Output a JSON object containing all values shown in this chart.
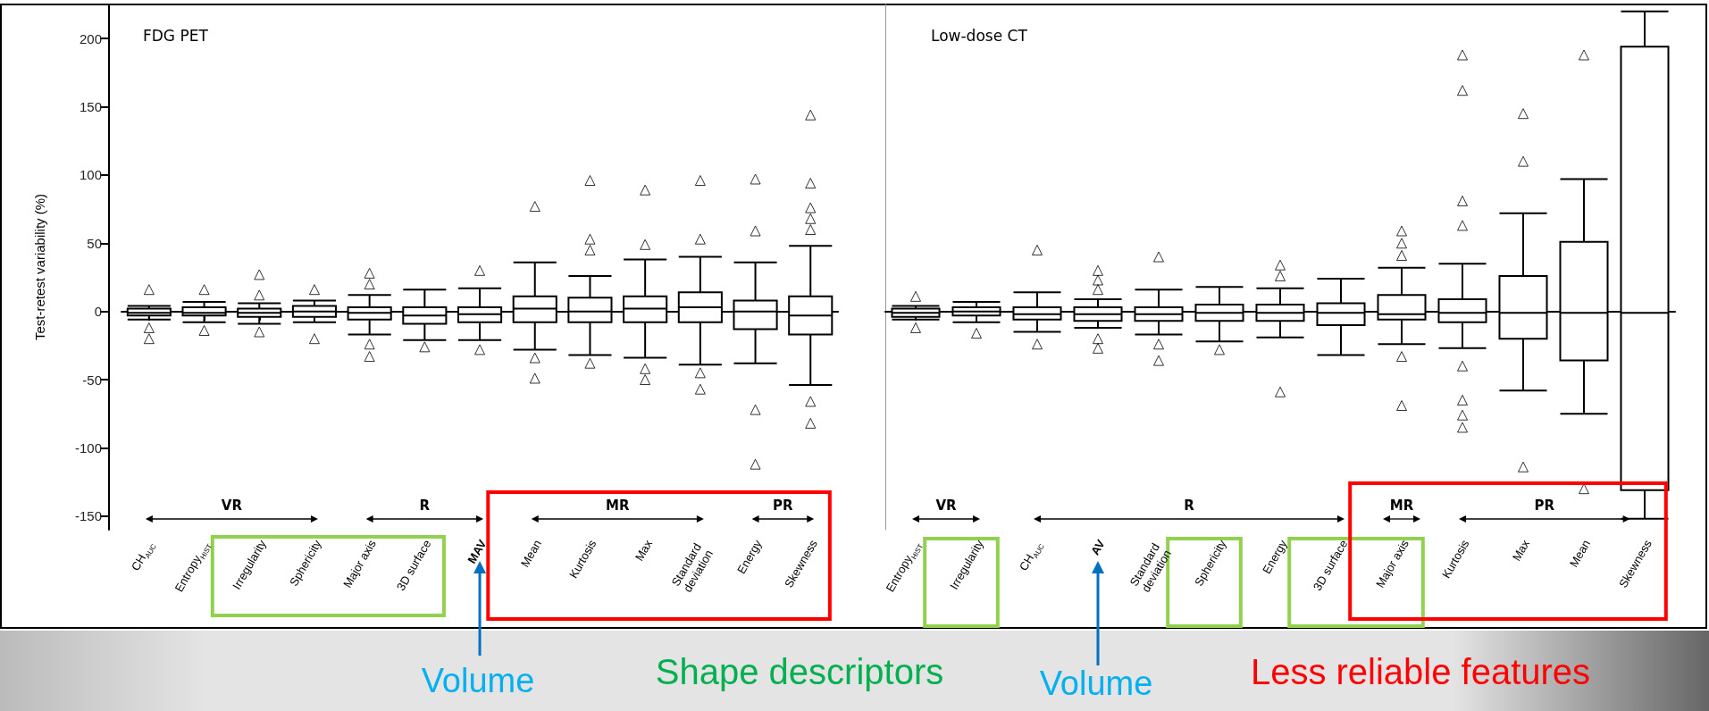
{
  "chart_data": [
    {
      "type": "box",
      "title": "FDG PET",
      "ylabel": "Test-retest variability (%)",
      "color": "#000000",
      "marker": "triangle",
      "categories": [
        "CH$_{AUC}$",
        "Entropy$_{HIST}$",
        "Irregularity",
        "Sphericity",
        "Major axis",
        "3D surface",
        "MAV",
        "Mean",
        "Kurtosis",
        "Max",
        "Standard deviation",
        "Energy",
        "Skewness"
      ],
      "boxes": [
        {
          "low": -6,
          "q1": -3,
          "median": -1,
          "q3": 2,
          "high": 4,
          "outliers": [
            16,
            -12,
            -20
          ]
        },
        {
          "low": -8,
          "q1": -3,
          "median": -1,
          "q3": 3,
          "high": 7,
          "outliers": [
            16,
            -14
          ]
        },
        {
          "low": -9,
          "q1": -4,
          "median": -1,
          "q3": 2,
          "high": 6,
          "outliers": [
            27,
            12,
            -15
          ]
        },
        {
          "low": -8,
          "q1": -4,
          "median": 0,
          "q3": 4,
          "high": 8,
          "outliers": [
            16,
            -20
          ]
        },
        {
          "low": -17,
          "q1": -6,
          "median": -1,
          "q3": 3,
          "high": 12,
          "outliers": [
            28,
            20,
            -24,
            -33
          ]
        },
        {
          "low": -21,
          "q1": -9,
          "median": -3,
          "q3": 3,
          "high": 16,
          "outliers": [
            -26
          ]
        },
        {
          "low": -21,
          "q1": -8,
          "median": -2,
          "q3": 3,
          "high": 17,
          "outliers": [
            30,
            -28
          ]
        },
        {
          "low": -28,
          "q1": -8,
          "median": 2,
          "q3": 11,
          "high": 36,
          "outliers": [
            77,
            -34,
            -49
          ]
        },
        {
          "low": -32,
          "q1": -8,
          "median": 0,
          "q3": 10,
          "high": 26,
          "outliers": [
            96,
            53,
            45,
            -38
          ]
        },
        {
          "low": -34,
          "q1": -8,
          "median": 2,
          "q3": 11,
          "high": 38,
          "outliers": [
            89,
            49,
            -42,
            -50
          ]
        },
        {
          "low": -39,
          "q1": -8,
          "median": 3,
          "q3": 14,
          "high": 40,
          "outliers": [
            96,
            53,
            -45,
            -57
          ]
        },
        {
          "low": -38,
          "q1": -13,
          "median": 0,
          "q3": 8,
          "high": 36,
          "outliers": [
            97,
            59,
            -72,
            -112
          ]
        },
        {
          "low": -54,
          "q1": -17,
          "median": -3,
          "q3": 11,
          "high": 48,
          "outliers": [
            144,
            94,
            76,
            68,
            60,
            -66,
            -82
          ]
        }
      ],
      "ylim": [
        -160,
        225
      ],
      "yticks": [
        -150,
        -100,
        -50,
        0,
        50,
        100,
        150,
        200
      ],
      "annotations": [
        "VR",
        "R",
        "MR",
        "PR",
        "Volume",
        "Shape descriptors"
      ]
    },
    {
      "type": "box",
      "title": "Low-dose CT",
      "color": "#000000",
      "marker": "triangle",
      "tick_labels": "x",
      "categories": [
        "Entropy$_{HIST}$",
        "Irregularity",
        "CH$_{AUC}$",
        "AV",
        "Standard deviation",
        "Sphericity",
        "Energy",
        "3D surface",
        "Major axis",
        "Kurtosis",
        "Max",
        "Mean",
        "Skewness"
      ],
      "boxes": [
        {
          "low": -6,
          "q1": -4,
          "median": -1,
          "q3": 2,
          "high": 4,
          "outliers": [
            11,
            -12
          ]
        },
        {
          "low": -8,
          "q1": -3,
          "median": 0,
          "q3": 3,
          "high": 7,
          "outliers": [
            -16
          ]
        },
        {
          "low": -15,
          "q1": -6,
          "median": -2,
          "q3": 3,
          "high": 14,
          "outliers": [
            45,
            -24
          ]
        },
        {
          "low": -12,
          "q1": -7,
          "median": -2,
          "q3": 3,
          "high": 9,
          "outliers": [
            30,
            23,
            16,
            -20,
            -27
          ]
        },
        {
          "low": -17,
          "q1": -7,
          "median": -2,
          "q3": 3,
          "high": 16,
          "outliers": [
            40,
            -24,
            -36
          ]
        },
        {
          "low": -22,
          "q1": -7,
          "median": -1,
          "q3": 5,
          "high": 18,
          "outliers": [
            -28
          ]
        },
        {
          "low": -19,
          "q1": -7,
          "median": -1,
          "q3": 5,
          "high": 17,
          "outliers": [
            34,
            26,
            -59
          ]
        },
        {
          "low": -32,
          "q1": -10,
          "median": -1,
          "q3": 6,
          "high": 24
        },
        {
          "low": -24,
          "q1": -6,
          "median": -2,
          "q3": 12,
          "high": 32,
          "outliers": [
            59,
            50,
            41,
            -33,
            -69
          ]
        },
        {
          "low": -27,
          "q1": -8,
          "median": -1,
          "q3": 9,
          "high": 35,
          "outliers": [
            188,
            162,
            81,
            63,
            -40,
            -65,
            -76,
            -85
          ]
        },
        {
          "low": -58,
          "q1": -20,
          "median": -1,
          "q3": 26,
          "high": 72,
          "outliers": [
            145,
            110,
            -114
          ]
        },
        {
          "low": -75,
          "q1": -36,
          "median": -1,
          "q3": 51,
          "high": 97,
          "outliers": [
            188,
            -130
          ]
        },
        {
          "low": -152,
          "q1": -131,
          "median": -1,
          "q3": 194,
          "high": 220
        }
      ],
      "ylim": [
        -160,
        225
      ],
      "yticks": [
        -150,
        -100,
        -50,
        0,
        50,
        100,
        150,
        200
      ],
      "annotations": [
        "VR",
        "R",
        "MR",
        "PR",
        "Volume",
        "Less reliable features"
      ]
    }
  ]
}
